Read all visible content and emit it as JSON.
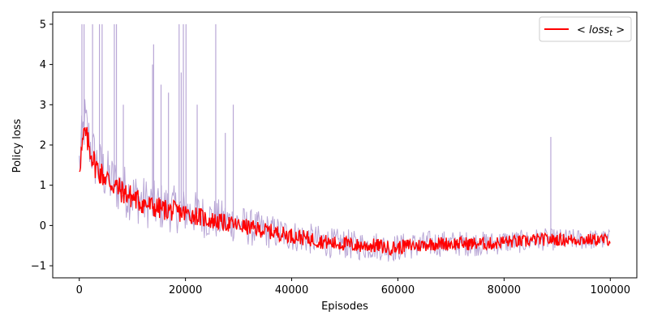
{
  "chart_data": {
    "type": "line",
    "title": "",
    "xlabel": "Episodes",
    "ylabel": "Policy loss",
    "xlim": [
      -5000,
      105000
    ],
    "ylim": [
      -1.3,
      5.3
    ],
    "xticks": [
      0,
      20000,
      40000,
      60000,
      80000,
      100000
    ],
    "xtick_labels": [
      "0",
      "20000",
      "40000",
      "60000",
      "80000",
      "100000"
    ],
    "yticks": [
      -1,
      0,
      1,
      2,
      3,
      4,
      5
    ],
    "ytick_labels": [
      "−1",
      "0",
      "1",
      "2",
      "3",
      "4",
      "5"
    ],
    "grid": false,
    "legend": {
      "placement": "top-right",
      "entries": [
        "< loss_t >"
      ]
    },
    "series": [
      {
        "name": "< loss_t >",
        "color": "#ff0000",
        "x": [
          0,
          1000,
          2000,
          3000,
          4000,
          5000,
          6000,
          8000,
          10000,
          12000,
          14000,
          16000,
          18000,
          20000,
          22000,
          24000,
          26000,
          28000,
          30000,
          32000,
          34000,
          36000,
          38000,
          40000,
          42000,
          44000,
          46000,
          48000,
          50000,
          52000,
          54000,
          56000,
          58000,
          60000,
          62000,
          64000,
          66000,
          68000,
          70000,
          72000,
          74000,
          76000,
          78000,
          80000,
          82000,
          84000,
          86000,
          88000,
          90000,
          92000,
          94000,
          96000,
          98000,
          100000
        ],
        "values": [
          1.5,
          2.3,
          1.9,
          1.5,
          1.3,
          1.2,
          1.05,
          0.85,
          0.7,
          0.55,
          0.45,
          0.4,
          0.35,
          0.3,
          0.25,
          0.15,
          0.1,
          0.05,
          0.0,
          -0.05,
          -0.1,
          -0.15,
          -0.2,
          -0.25,
          -0.3,
          -0.35,
          -0.4,
          -0.45,
          -0.45,
          -0.5,
          -0.5,
          -0.5,
          -0.55,
          -0.55,
          -0.5,
          -0.5,
          -0.45,
          -0.45,
          -0.45,
          -0.45,
          -0.45,
          -0.45,
          -0.45,
          -0.4,
          -0.4,
          -0.4,
          -0.35,
          -0.35,
          -0.35,
          -0.35,
          -0.35,
          -0.35,
          -0.35,
          -0.35
        ]
      }
    ],
    "band": {
      "color": "#b9a7d6",
      "x": [
        0,
        1000,
        2000,
        3000,
        4000,
        5000,
        6000,
        8000,
        10000,
        12000,
        14000,
        16000,
        18000,
        20000,
        22000,
        24000,
        26000,
        28000,
        30000,
        32000,
        34000,
        36000,
        38000,
        40000,
        42000,
        44000,
        46000,
        48000,
        50000,
        52000,
        54000,
        56000,
        58000,
        60000,
        62000,
        64000,
        66000,
        68000,
        70000,
        72000,
        74000,
        76000,
        78000,
        80000,
        82000,
        84000,
        86000,
        88000,
        90000,
        92000,
        94000,
        96000,
        98000,
        100000
      ],
      "values": [
        1.5,
        2.6,
        2.0,
        1.6,
        1.4,
        1.25,
        1.1,
        0.9,
        0.75,
        0.6,
        0.5,
        0.45,
        0.4,
        0.35,
        0.3,
        0.2,
        0.15,
        0.1,
        0.05,
        -0.05,
        -0.1,
        -0.15,
        -0.2,
        -0.25,
        -0.3,
        -0.35,
        -0.4,
        -0.45,
        -0.45,
        -0.5,
        -0.5,
        -0.5,
        -0.55,
        -0.55,
        -0.5,
        -0.5,
        -0.45,
        -0.45,
        -0.45,
        -0.45,
        -0.45,
        -0.45,
        -0.45,
        -0.4,
        -0.4,
        -0.4,
        -0.35,
        -0.35,
        -0.35,
        -0.35,
        -0.35,
        -0.35,
        -0.35,
        -0.35
      ],
      "spikes": [
        {
          "x": 500,
          "y": 5.0
        },
        {
          "x": 900,
          "y": 5.0
        },
        {
          "x": 2500,
          "y": 5.0
        },
        {
          "x": 3800,
          "y": 5.0
        },
        {
          "x": 4300,
          "y": 5.0
        },
        {
          "x": 6600,
          "y": 5.0
        },
        {
          "x": 7000,
          "y": 5.0
        },
        {
          "x": 8300,
          "y": 3.0
        },
        {
          "x": 13800,
          "y": 4.0
        },
        {
          "x": 14000,
          "y": 4.5
        },
        {
          "x": 15400,
          "y": 3.5
        },
        {
          "x": 16800,
          "y": 3.3
        },
        {
          "x": 18800,
          "y": 5.0
        },
        {
          "x": 19200,
          "y": 3.8
        },
        {
          "x": 19600,
          "y": 5.0
        },
        {
          "x": 20100,
          "y": 5.0
        },
        {
          "x": 22200,
          "y": 3.0
        },
        {
          "x": 25700,
          "y": 5.0
        },
        {
          "x": 27500,
          "y": 2.3
        },
        {
          "x": 29000,
          "y": 3.0
        },
        {
          "x": 88800,
          "y": 2.2
        }
      ]
    }
  }
}
